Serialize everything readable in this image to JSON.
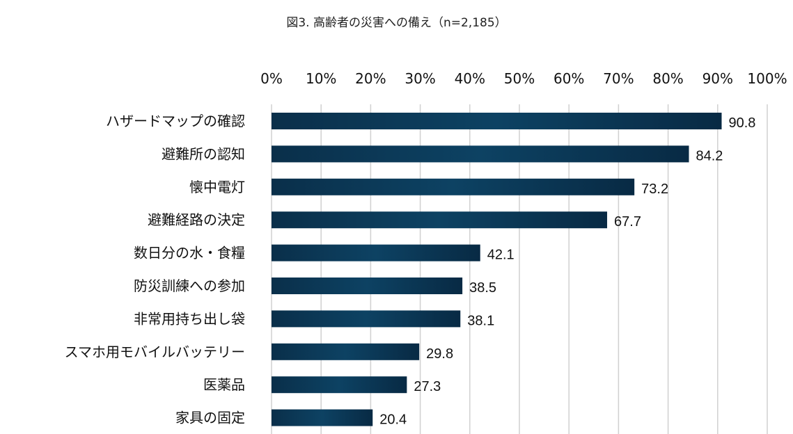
{
  "chart_data": {
    "type": "bar",
    "orientation": "horizontal",
    "title": "図3. 高齢者の災害への備え（n=2,185）",
    "categories": [
      "ハザードマップの確認",
      "避難所の認知",
      "懐中電灯",
      "避難経路の決定",
      "数日分の水・食糧",
      "防災訓練への参加",
      "非常用持ち出し袋",
      "スマホ用モバイルバッテリー",
      "医薬品",
      "家具の固定"
    ],
    "values": [
      90.8,
      84.2,
      73.2,
      67.7,
      42.1,
      38.5,
      38.1,
      29.8,
      27.3,
      20.4
    ],
    "value_labels": [
      "90.8",
      "84.2",
      "73.2",
      "67.7",
      "42.1",
      "38.5",
      "38.1",
      "29.8",
      "27.3",
      "20.4"
    ],
    "xlim": [
      0,
      100
    ],
    "ticks": [
      "0%",
      "10%",
      "20%",
      "30%",
      "40%",
      "50%",
      "60%",
      "70%",
      "80%",
      "90%",
      "100%"
    ],
    "xaxis_position": "top",
    "grid": true,
    "bar_color": "#0b3a58",
    "grid_color": "#d0d0d0"
  }
}
